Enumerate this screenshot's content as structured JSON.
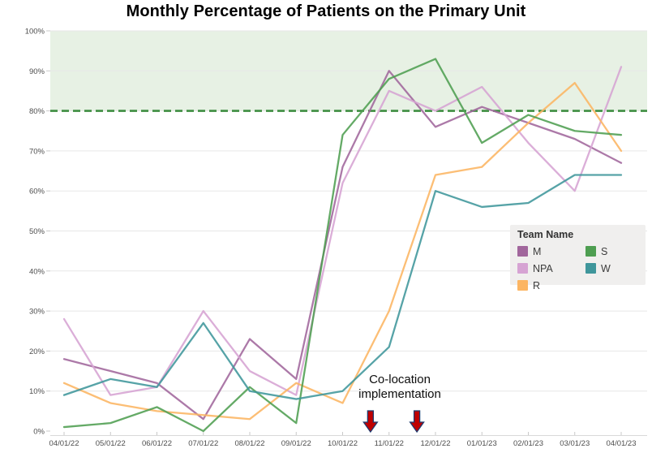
{
  "chart_data": {
    "type": "line",
    "title": "Monthly Percentage of Patients on the Primary Unit",
    "categories": [
      "04/01/22",
      "05/01/22",
      "06/01/22",
      "07/01/22",
      "08/01/22",
      "09/01/22",
      "10/01/22",
      "11/01/22",
      "12/01/22",
      "01/01/23",
      "02/01/23",
      "03/01/23",
      "04/01/23"
    ],
    "series": [
      {
        "name": "M",
        "color": "#a1669c",
        "values": [
          18,
          15,
          12,
          3,
          23,
          13,
          66,
          90,
          76,
          81,
          77,
          73,
          67
        ]
      },
      {
        "name": "NPA",
        "color": "#d6a3d3",
        "values": [
          28,
          9,
          11,
          30,
          15,
          9,
          62,
          85,
          80,
          86,
          72,
          60,
          91
        ]
      },
      {
        "name": "R",
        "color": "#fcb562",
        "values": [
          12,
          7,
          5,
          4,
          3,
          12,
          7,
          30,
          64,
          66,
          77,
          87,
          70
        ]
      },
      {
        "name": "S",
        "color": "#4e9e51",
        "values": [
          1,
          2,
          6,
          0,
          11,
          2,
          74,
          88,
          93,
          72,
          79,
          75,
          74
        ]
      },
      {
        "name": "W",
        "color": "#3f969b",
        "values": [
          9,
          13,
          11,
          27,
          10,
          8,
          10,
          21,
          60,
          56,
          57,
          64,
          64
        ]
      }
    ],
    "ylim": [
      0,
      100
    ],
    "y_tick_labels": [
      "0%",
      "10%",
      "20%",
      "30%",
      "40%",
      "50%",
      "60%",
      "70%",
      "80%",
      "90%",
      "100%"
    ],
    "grid": "horizontal",
    "reference_band": {
      "from": 80,
      "to": 100,
      "color": "#e7f1e4"
    },
    "reference_line": {
      "y": 80,
      "color": "#3e8e41",
      "style": "dashed"
    },
    "legend": {
      "title": "Team Name",
      "position": "right-middle",
      "columns": [
        [
          0,
          1,
          2
        ],
        [
          3,
          4
        ]
      ]
    },
    "annotation": {
      "text": "Co-location implementation",
      "arrow_color": "#c00000",
      "arrow_outline": "#1f3a6e",
      "arrow_positions_x": [
        6.6,
        7.6
      ]
    }
  }
}
